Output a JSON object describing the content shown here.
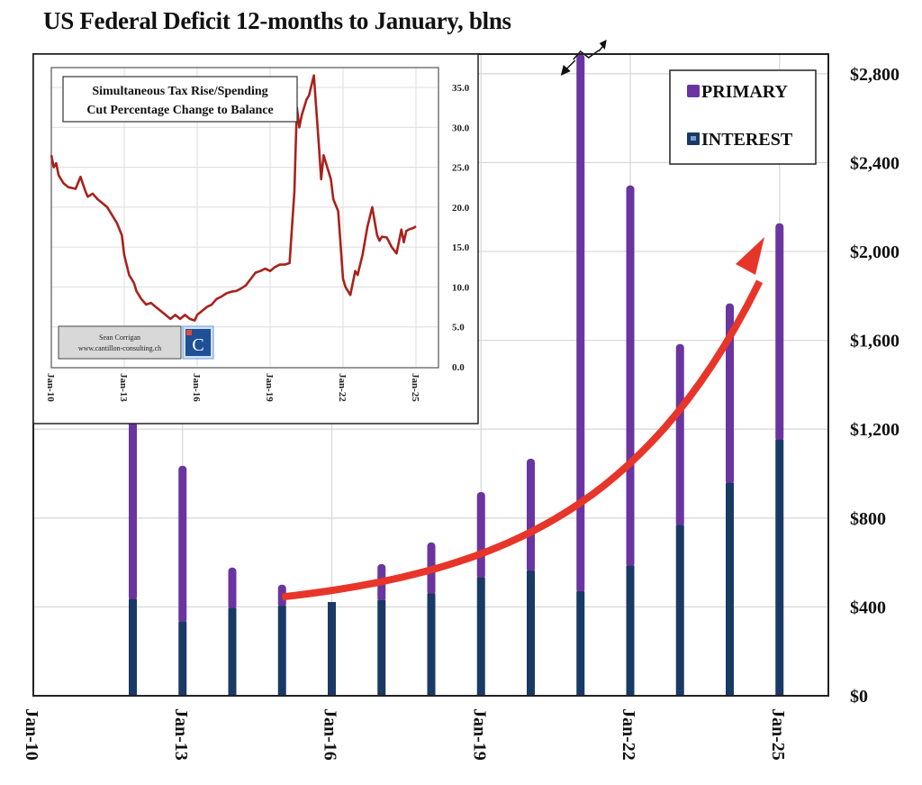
{
  "chart_data": [
    {
      "type": "bar",
      "stacked": true,
      "title": "US Federal Deficit 12-months to January, blns",
      "xlabel": "",
      "ylabel": "",
      "ylim": [
        0,
        2900
      ],
      "yticks": [
        "$0",
        "$400",
        "$800",
        "$1,200",
        "$1,600",
        "$2,000",
        "$2,400",
        "$2,800"
      ],
      "ytick_values": [
        0,
        400,
        800,
        1200,
        1600,
        2000,
        2400,
        2800
      ],
      "xticks": [
        "Jan-10",
        "Jan-13",
        "Jan-16",
        "Jan-19",
        "Jan-22",
        "Jan-25"
      ],
      "xtick_years": [
        2010,
        2013,
        2016,
        2019,
        2022,
        2025
      ],
      "xlim_years": [
        2010,
        2026.0
      ],
      "grid": true,
      "legend_position": "top-right",
      "categories": [
        "Jan-12",
        "Jan-13",
        "Jan-14",
        "Jan-15",
        "Jan-16",
        "Jan-17",
        "Jan-18",
        "Jan-19",
        "Jan-20",
        "Jan-21",
        "Jan-22",
        "Jan-23",
        "Jan-24",
        "Jan-25"
      ],
      "years": [
        2012,
        2013,
        2014,
        2015,
        2016,
        2017,
        2018,
        2019,
        2020,
        2021,
        2022,
        2023,
        2024,
        2025
      ],
      "series": [
        {
          "name": "INTEREST",
          "color": "#1a3a66",
          "values": [
            435,
            333,
            395,
            405,
            422,
            430,
            460,
            532,
            563,
            470,
            585,
            768,
            958,
            1153
          ]
        },
        {
          "name": "PRIMARY",
          "color": "#6a35a0",
          "values": [
            870,
            702,
            182,
            95,
            0,
            163,
            230,
            385,
            504,
            2500,
            1712,
            815,
            808,
            974
          ]
        }
      ],
      "truncated_category": "Jan-21",
      "annotations": [
        {
          "type": "trend-arrow",
          "color": "#e8352a",
          "from_year": 2015,
          "to_year": 2025
        }
      ]
    },
    {
      "type": "line",
      "title_line1": "Simultaneous  Tax Rise/Spending",
      "title_line2": "Cut Percentage Change to Balance",
      "ylim": [
        0,
        37
      ],
      "yticks": [
        "0.0",
        "5.0",
        "10.0",
        "15.0",
        "20.0",
        "25.0",
        "30.0",
        "35.0"
      ],
      "ytick_values": [
        0,
        5,
        10,
        15,
        20,
        25,
        30,
        35
      ],
      "xticks": [
        "Jan-10",
        "Jan-13",
        "Jan-16",
        "Jan-19",
        "Jan-22",
        "Jan-25"
      ],
      "xtick_years": [
        2010,
        2013,
        2016,
        2019,
        2022,
        2025
      ],
      "xlim_years": [
        2010,
        2025.9
      ],
      "grid": true,
      "series": [
        {
          "name": "Simultaneous Tax Rise/Spending Cut Percentage Change to Balance",
          "color": "#a8221c",
          "x": [
            2010.0,
            2010.1,
            2010.2,
            2010.3,
            2010.5,
            2010.7,
            2011.0,
            2011.2,
            2011.4,
            2011.5,
            2011.7,
            2011.9,
            2012.1,
            2012.3,
            2012.5,
            2012.7,
            2012.9,
            2013.0,
            2013.2,
            2013.4,
            2013.5,
            2013.7,
            2013.9,
            2014.1,
            2014.3,
            2014.5,
            2014.7,
            2014.9,
            2015.1,
            2015.3,
            2015.5,
            2015.7,
            2015.9,
            2016.0,
            2016.2,
            2016.4,
            2016.6,
            2016.8,
            2017.0,
            2017.2,
            2017.4,
            2017.6,
            2017.8,
            2018.0,
            2018.2,
            2018.4,
            2018.6,
            2018.8,
            2019.0,
            2019.2,
            2019.4,
            2019.6,
            2019.8,
            2020.0,
            2020.1,
            2020.2,
            2020.3,
            2020.4,
            2020.5,
            2020.6,
            2020.8,
            2021.0,
            2021.1,
            2021.2,
            2021.3,
            2021.4,
            2021.5,
            2021.6,
            2021.8,
            2022.0,
            2022.1,
            2022.3,
            2022.5,
            2022.6,
            2022.8,
            2023.0,
            2023.2,
            2023.4,
            2023.5,
            2023.6,
            2023.8,
            2024.0,
            2024.2,
            2024.4,
            2024.5,
            2024.6,
            2024.7,
            2024.9,
            2025.0
          ],
          "y": [
            26.5,
            25.0,
            25.5,
            24.0,
            23.0,
            22.5,
            22.3,
            23.8,
            22.0,
            21.3,
            21.7,
            21.0,
            20.5,
            20.0,
            19.0,
            18.0,
            16.5,
            14.0,
            11.5,
            10.5,
            9.5,
            8.5,
            7.8,
            8.0,
            7.5,
            7.0,
            6.5,
            6.0,
            6.5,
            6.0,
            6.5,
            6.0,
            5.8,
            6.5,
            7.0,
            7.5,
            7.8,
            8.5,
            8.8,
            9.2,
            9.4,
            9.5,
            9.8,
            10.2,
            11.0,
            11.8,
            12.0,
            12.3,
            12.0,
            12.5,
            12.8,
            12.8,
            13.0,
            22.0,
            32.5,
            30.0,
            31.5,
            32.5,
            33.5,
            34.0,
            36.5,
            28.0,
            23.5,
            26.5,
            25.5,
            24.5,
            23.5,
            21.0,
            19.5,
            11.0,
            10.0,
            9.0,
            12.0,
            11.5,
            14.0,
            17.5,
            20.0,
            16.5,
            15.8,
            16.3,
            16.2,
            15.0,
            14.2,
            17.2,
            15.6,
            17.0,
            17.2,
            17.4,
            17.6
          ]
        }
      ],
      "credit_line1": "Sean Corrigan",
      "credit_line2": "www.cantillon-consulting.ch",
      "logo_letter": "C"
    }
  ],
  "legend": {
    "primary_label": "PRIMARY",
    "interest_label": "INTEREST"
  },
  "colors": {
    "primary": "#6a35a0",
    "interest": "#1a3a66",
    "arrow": "#e8352a",
    "inset_line": "#a8221c",
    "grid": "#d9d9d9",
    "logo_bg": "#1f4f95"
  }
}
